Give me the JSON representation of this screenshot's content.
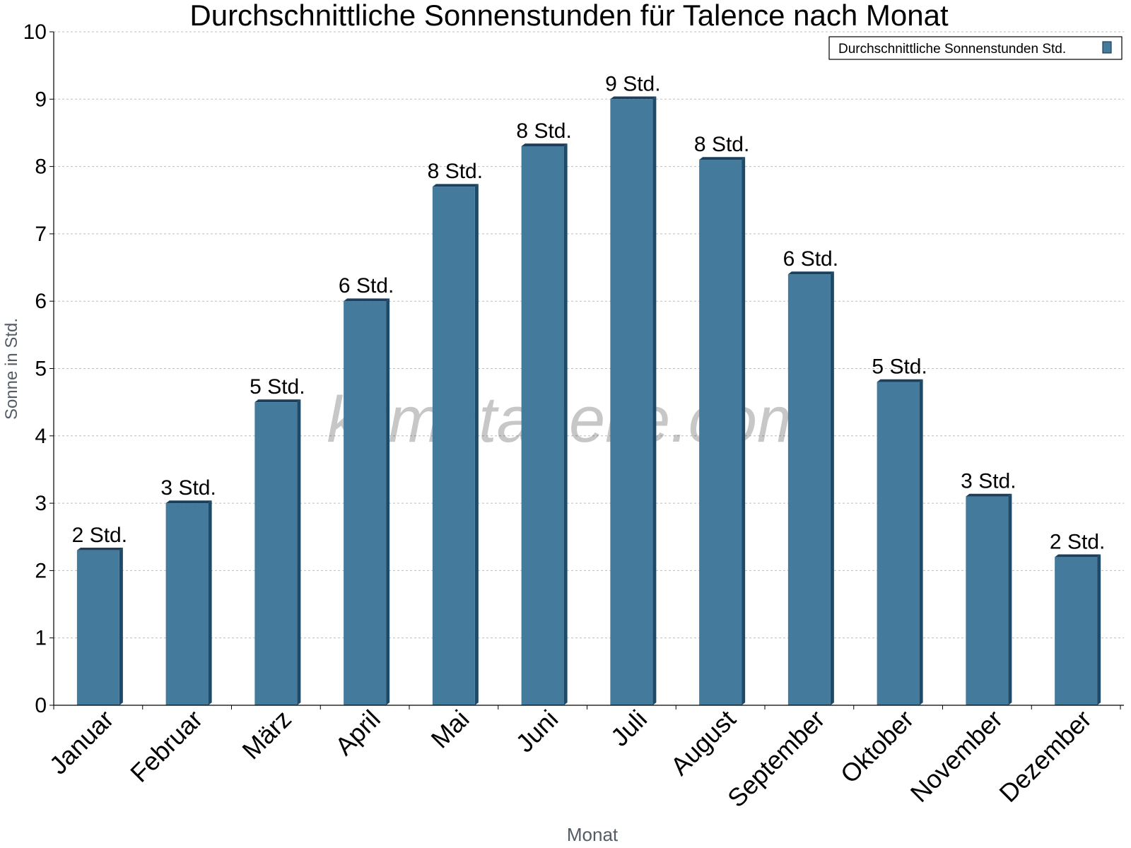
{
  "chart_data": {
    "type": "bar",
    "title": "Durchschnittliche Sonnenstunden für Talence nach Monat",
    "xlabel": "Monat",
    "ylabel": "Sonne in Std.",
    "ylim": [
      0,
      10
    ],
    "yticks": [
      "0",
      "1",
      "2",
      "3",
      "4",
      "5",
      "6",
      "7",
      "8",
      "9",
      "10"
    ],
    "grid": true,
    "legend_position": "top-right",
    "categories": [
      "Januar",
      "Februar",
      "März",
      "April",
      "Mai",
      "Juni",
      "Juli",
      "August",
      "September",
      "Oktober",
      "November",
      "Dezember"
    ],
    "series": [
      {
        "name": "Durchschnittliche Sonnenstunden Std.",
        "color": "#447a9c",
        "values": [
          2.3,
          3.0,
          4.5,
          6.0,
          7.7,
          8.3,
          9.0,
          8.1,
          6.4,
          4.8,
          3.1,
          2.2
        ],
        "labels": [
          "2 Std.",
          "3 Std.",
          "5 Std.",
          "6 Std.",
          "8 Std.",
          "8 Std.",
          "9 Std.",
          "8 Std.",
          "6 Std.",
          "5 Std.",
          "3 Std.",
          "2 Std."
        ]
      }
    ],
    "watermark": "klimatabelle.com"
  }
}
